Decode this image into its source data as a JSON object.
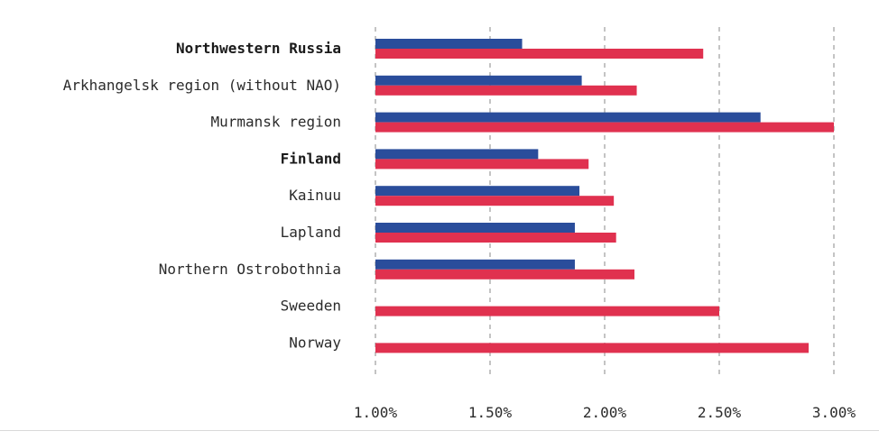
{
  "chart_data": {
    "type": "bar",
    "orientation": "horizontal",
    "title": "",
    "xlabel": "",
    "ylabel": "",
    "xlim": [
      0.01,
      0.03
    ],
    "x_ticks": [
      "1.00%",
      "1.50%",
      "2.00%",
      "2.50%",
      "3.00%"
    ],
    "x_tick_values": [
      0.01,
      0.015,
      0.02,
      0.025,
      0.03
    ],
    "grid": "vertical dashed",
    "legend": "none",
    "categories": [
      "Northwestern Russia",
      "Arkhangelsk region (without NAO)",
      "Murmansk region",
      "Finland",
      "Kainuu",
      "Lapland",
      "Northern Ostrobothnia",
      "Sweeden",
      "Norway"
    ],
    "bold_categories": [
      "Northwestern Russia",
      "Finland"
    ],
    "series": [
      {
        "color": "#2a4d9b",
        "values": [
          0.0164,
          0.019,
          0.0268,
          0.0171,
          0.0189,
          0.0187,
          0.0187,
          null,
          null
        ]
      },
      {
        "color": "#e0314f",
        "values": [
          0.0243,
          0.0214,
          0.03,
          0.0193,
          0.0204,
          0.0205,
          0.0213,
          0.025,
          0.0289
        ]
      }
    ]
  }
}
